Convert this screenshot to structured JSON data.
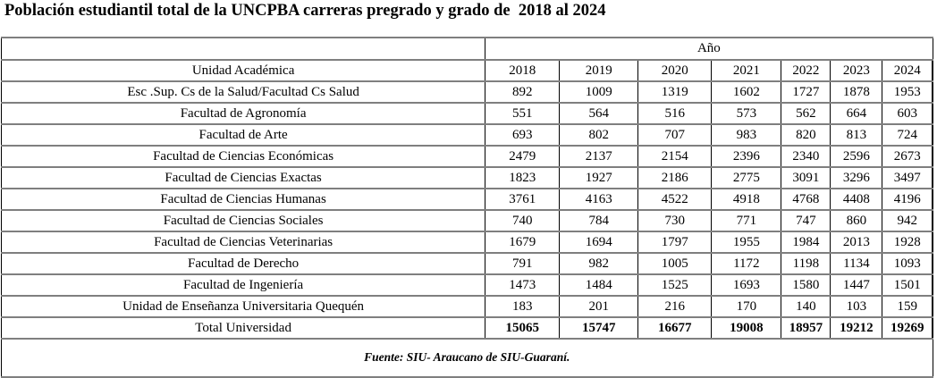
{
  "title": "Población estudiantil total de la UNCPBA carreras pregrado y grado de  2018 al 2024",
  "source_note": "Fuente: SIU- Araucano de SIU-Guaraní.",
  "colors": {
    "background": "#ffffff",
    "text": "#000000",
    "gridline_gray": "#7f7f7f",
    "gridline_black": "#000000",
    "gridline_light": "#d9d9d9"
  },
  "table": {
    "year_group_header": "Año",
    "unit_column_header": "Unidad Académica",
    "year_columns": [
      "2018",
      "2019",
      "2020",
      "2021",
      "2022",
      "2023",
      "2024"
    ],
    "rows": [
      {
        "label": "Esc .Sup. Cs de la Salud/Facultad Cs Salud",
        "values": [
          892,
          1009,
          1319,
          1602,
          1727,
          1878,
          1953
        ]
      },
      {
        "label": "Facultad de Agronomía",
        "values": [
          551,
          564,
          516,
          573,
          562,
          664,
          603
        ]
      },
      {
        "label": "Facultad de Arte",
        "values": [
          693,
          802,
          707,
          983,
          820,
          813,
          724
        ]
      },
      {
        "label": "Facultad de Ciencias Económicas",
        "values": [
          2479,
          2137,
          2154,
          2396,
          2340,
          2596,
          2673
        ]
      },
      {
        "label": "Facultad de Ciencias Exactas",
        "values": [
          1823,
          1927,
          2186,
          2775,
          3091,
          3296,
          3497
        ]
      },
      {
        "label": "Facultad de Ciencias Humanas",
        "values": [
          3761,
          4163,
          4522,
          4918,
          4768,
          4408,
          4196
        ]
      },
      {
        "label": "Facultad de Ciencias Sociales",
        "values": [
          740,
          784,
          730,
          771,
          747,
          860,
          942
        ]
      },
      {
        "label": "Facultad de Ciencias Veterinarias",
        "values": [
          1679,
          1694,
          1797,
          1955,
          1984,
          2013,
          1928
        ]
      },
      {
        "label": "Facultad de Derecho",
        "values": [
          791,
          982,
          1005,
          1172,
          1198,
          1134,
          1093
        ]
      },
      {
        "label": "Facultad de Ingeniería",
        "values": [
          1473,
          1484,
          1525,
          1693,
          1580,
          1447,
          1501
        ]
      },
      {
        "label": "Unidad de Enseñanza Universitaria Quequén",
        "values": [
          183,
          201,
          216,
          170,
          140,
          103,
          159
        ]
      }
    ],
    "total_row": {
      "label": "Total Universidad",
      "values": [
        15065,
        15747,
        16677,
        19008,
        18957,
        19212,
        19269
      ]
    }
  },
  "chart_data": {
    "type": "table",
    "title": "Población estudiantil total de la UNCPBA carreras pregrado y grado de  2018 al 2024",
    "categories": [
      "2018",
      "2019",
      "2020",
      "2021",
      "2022",
      "2023",
      "2024"
    ],
    "series": [
      {
        "name": "Esc .Sup. Cs de la Salud/Facultad Cs Salud",
        "values": [
          892,
          1009,
          1319,
          1602,
          1727,
          1878,
          1953
        ]
      },
      {
        "name": "Facultad de Agronomía",
        "values": [
          551,
          564,
          516,
          573,
          562,
          664,
          603
        ]
      },
      {
        "name": "Facultad de Arte",
        "values": [
          693,
          802,
          707,
          983,
          820,
          813,
          724
        ]
      },
      {
        "name": "Facultad de Ciencias Económicas",
        "values": [
          2479,
          2137,
          2154,
          2396,
          2340,
          2596,
          2673
        ]
      },
      {
        "name": "Facultad de Ciencias Exactas",
        "values": [
          1823,
          1927,
          2186,
          2775,
          3091,
          3296,
          3497
        ]
      },
      {
        "name": "Facultad de Ciencias Humanas",
        "values": [
          3761,
          4163,
          4522,
          4918,
          4768,
          4408,
          4196
        ]
      },
      {
        "name": "Facultad de Ciencias Sociales",
        "values": [
          740,
          784,
          730,
          771,
          747,
          860,
          942
        ]
      },
      {
        "name": "Facultad de Ciencias Veterinarias",
        "values": [
          1679,
          1694,
          1797,
          1955,
          1984,
          2013,
          1928
        ]
      },
      {
        "name": "Facultad de Derecho",
        "values": [
          791,
          982,
          1005,
          1172,
          1198,
          1134,
          1093
        ]
      },
      {
        "name": "Facultad de Ingeniería",
        "values": [
          1473,
          1484,
          1525,
          1693,
          1580,
          1447,
          1501
        ]
      },
      {
        "name": "Unidad de Enseñanza Universitaria Quequén",
        "values": [
          183,
          201,
          216,
          170,
          140,
          103,
          159
        ]
      },
      {
        "name": "Total Universidad",
        "values": [
          15065,
          15747,
          16677,
          19008,
          18957,
          19212,
          19269
        ]
      }
    ]
  }
}
